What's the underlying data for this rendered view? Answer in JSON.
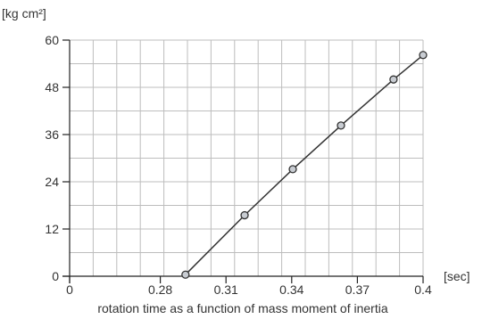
{
  "chart_data": {
    "type": "line",
    "ylabel": "[kg cm²]",
    "xlabel": "[sec]",
    "caption": "rotation time as a function of mass moment of inertia",
    "x_ticks": [
      "0",
      "0.28",
      "0.31",
      "0.34",
      "0.37",
      "0.4"
    ],
    "y_ticks": [
      "0",
      "12",
      "24",
      "36",
      "48",
      "60"
    ],
    "ylim": [
      0,
      60
    ],
    "xlim_note": "axis break: 0 then 0.25 to 0.4",
    "grid": true,
    "series": [
      {
        "x": [
          0.2915,
          0.3185,
          0.3405,
          0.3625,
          0.3865,
          0.4
        ],
        "y": [
          0.4,
          15.5,
          27.2,
          38.3,
          50.0,
          56.2
        ]
      }
    ],
    "colors": {
      "line": "#333333",
      "marker_fill": "#c8ccd2",
      "grid": "#bdbdbd",
      "axis": "#222222"
    }
  }
}
